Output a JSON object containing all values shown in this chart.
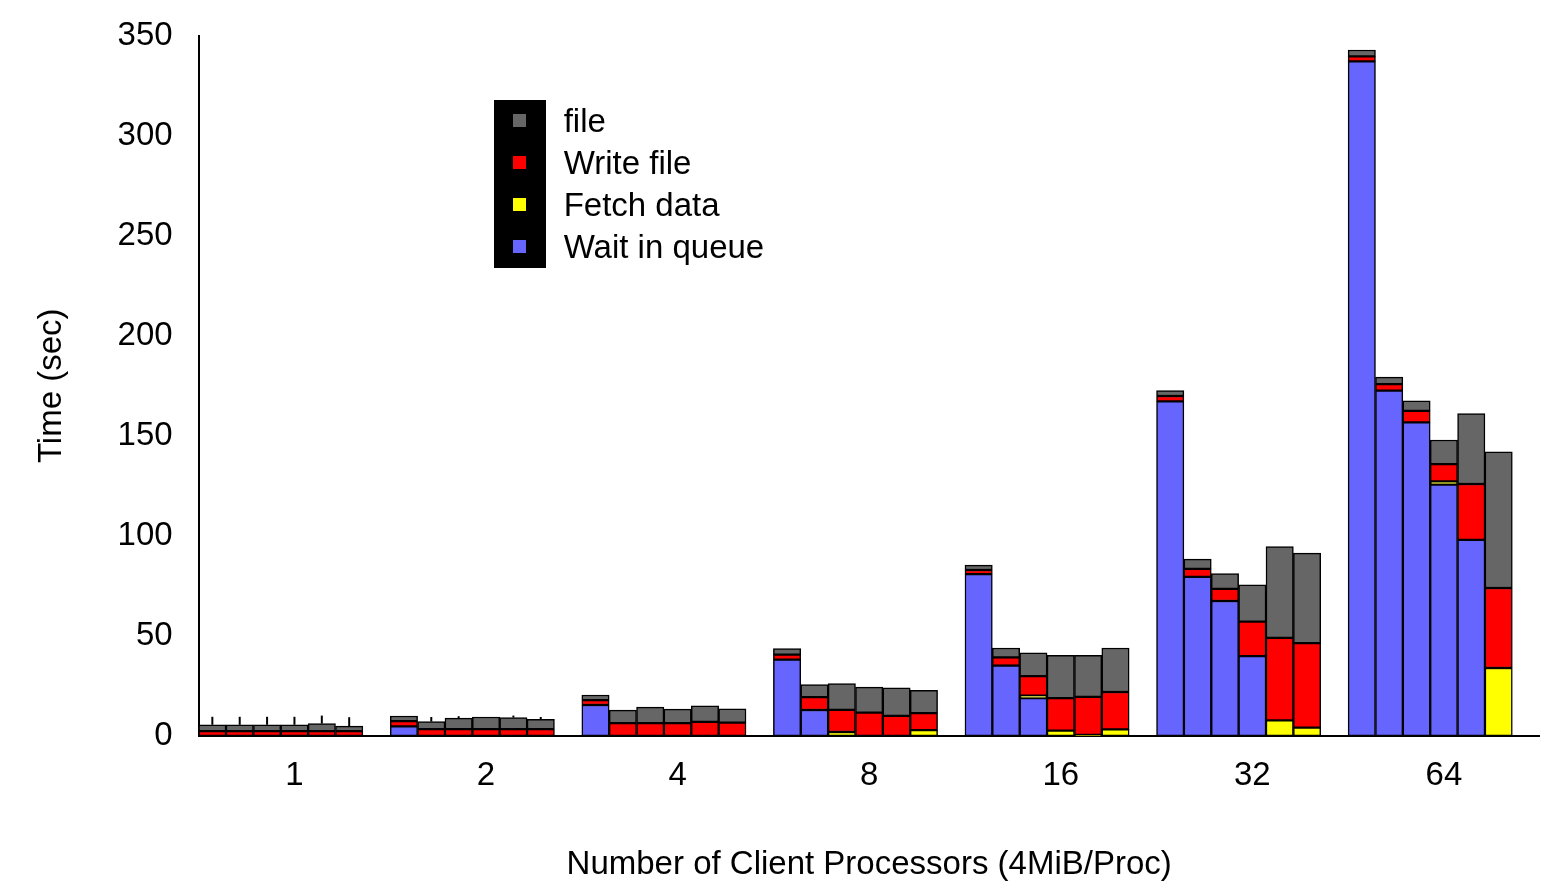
{
  "chart_data": {
    "type": "bar",
    "stacked": true,
    "xlabel": "Number of Client Processors (4MiB/Proc)",
    "ylabel": "Time (sec)",
    "categories": [
      null,
      null,
      null,
      "1",
      null,
      null,
      null,
      null,
      null,
      null,
      "2",
      null,
      null,
      null,
      null,
      null,
      null,
      "4",
      null,
      null,
      null,
      null,
      null,
      null,
      "8",
      null,
      null,
      null,
      null,
      null,
      null,
      "16",
      null,
      null,
      null,
      null,
      null,
      null,
      "32",
      null,
      null,
      null,
      null,
      null,
      null,
      "64",
      null,
      null,
      null
    ],
    "ylim": [
      0,
      350
    ],
    "yticks": [
      0,
      50,
      100,
      150,
      200,
      250,
      300,
      350
    ],
    "grid": false,
    "legend": "top left",
    "series": [
      {
        "name": "Wait in queue",
        "color": "#6666ff",
        "values": [
          0,
          0,
          0,
          0,
          0,
          0,
          null,
          4.7,
          0,
          0,
          0,
          0,
          0,
          null,
          15.4,
          0,
          0,
          0,
          0,
          0,
          null,
          38.1,
          12.9,
          0,
          0,
          0,
          0,
          null,
          80.8,
          35.1,
          18.8,
          0,
          0,
          0,
          null,
          167.2,
          79.5,
          67.4,
          39.8,
          0,
          0,
          null,
          337.2,
          172.6,
          156.7,
          125.6,
          98.0,
          0,
          null
        ]
      },
      {
        "name": "Fetch data",
        "color": "#ffff00",
        "values": [
          0,
          0,
          0,
          0,
          0,
          0,
          null,
          0,
          0,
          0,
          0,
          0,
          0,
          null,
          0,
          0,
          0,
          0,
          0,
          0,
          null,
          0,
          0,
          1.9,
          0,
          0,
          2.8,
          null,
          0,
          0,
          1.3,
          2.6,
          0.5,
          3.2,
          null,
          0,
          0,
          0,
          0,
          7.7,
          4.1,
          null,
          0,
          0,
          0,
          1.6,
          0,
          33.9,
          null
        ]
      },
      {
        "name": "Write file",
        "color": "#ff0000",
        "values": [
          2.3,
          2.3,
          2.3,
          2.3,
          2.3,
          2.3,
          null,
          2.6,
          3.3,
          3.3,
          3.3,
          3.3,
          3.3,
          null,
          2.4,
          6.3,
          6.3,
          6.3,
          7.0,
          6.6,
          null,
          2.5,
          6.4,
          11.1,
          11.6,
          10.0,
          8.5,
          null,
          2.1,
          4.1,
          9.7,
          16.2,
          19.0,
          18.7,
          null,
          2.7,
          4.0,
          6.1,
          17.3,
          41.3,
          42.2,
          null,
          2.5,
          3.2,
          5.8,
          8.6,
          27.9,
          40.0,
          null
        ]
      },
      {
        "name": "file",
        "color": "#666666",
        "values": [
          3.2,
          3.2,
          3.2,
          3.2,
          3.8,
          2.5,
          null,
          2.6,
          3.8,
          5.5,
          6.1,
          5.8,
          4.9,
          null,
          2.6,
          6.5,
          8.0,
          7.0,
          8.0,
          6.9,
          null,
          3.0,
          6.3,
          13.1,
          12.7,
          14.0,
          11.4,
          null,
          2.4,
          4.7,
          11.7,
          21.4,
          20.7,
          22.0,
          null,
          2.7,
          4.8,
          7.6,
          18.4,
          45.6,
          45.0,
          null,
          3.2,
          3.5,
          5.0,
          12.1,
          35.2,
          68.1,
          null
        ],
        "errors": [
          4,
          4,
          4,
          4,
          4,
          4.5,
          null,
          null,
          2.3,
          1,
          null,
          1,
          1.2,
          null,
          null,
          null,
          null,
          null,
          null,
          null,
          null,
          null,
          null,
          null,
          null,
          null,
          null,
          null,
          null,
          null,
          null,
          null,
          null,
          null,
          null,
          null,
          null,
          null,
          null,
          null,
          null,
          null,
          null,
          null,
          null,
          null,
          null,
          null,
          null
        ]
      }
    ]
  }
}
